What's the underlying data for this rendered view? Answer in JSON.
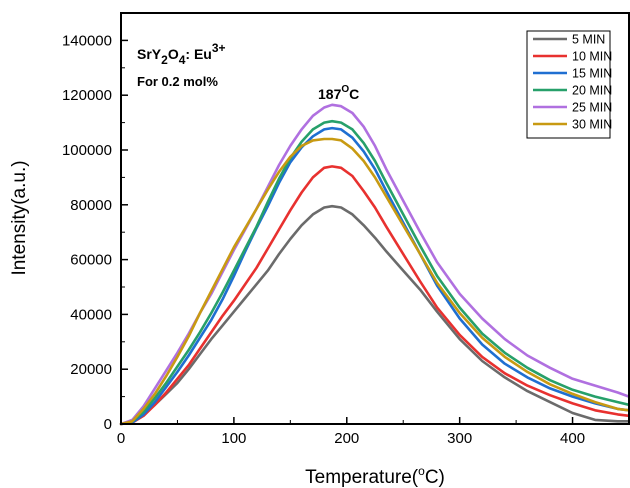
{
  "chart_data": {
    "type": "line",
    "xlabel": "Temperature(",
    "xlabel_sup": "o",
    "xlabel_end": "C)",
    "ylabel": "Intensity(a.u.)",
    "xlim": [
      0,
      450
    ],
    "ylim": [
      0,
      150000
    ],
    "xticks": [
      0,
      100,
      200,
      300,
      400
    ],
    "yticks": [
      0,
      20000,
      40000,
      60000,
      80000,
      100000,
      120000,
      140000
    ],
    "legend_position": "top-right",
    "grid": false,
    "annotations": {
      "compound_base": "SrY",
      "compound_sub1": "2",
      "compound_mid": "O",
      "compound_sub2": "4",
      "compound_end": ": Eu",
      "compound_sup": "3+",
      "concentration": "For 0.2 mol%",
      "peak_value": "187",
      "peak_sup": "O",
      "peak_unit": "C"
    },
    "x": [
      0,
      10,
      20,
      30,
      40,
      50,
      60,
      70,
      80,
      90,
      100,
      110,
      120,
      130,
      140,
      150,
      160,
      170,
      180,
      187,
      195,
      205,
      215,
      225,
      235,
      250,
      265,
      280,
      300,
      320,
      340,
      360,
      380,
      400,
      420,
      440,
      450
    ],
    "series": [
      {
        "name": "5 MIN",
        "color": "#6b6b6b",
        "values": [
          0,
          1000,
          3500,
          7000,
          11000,
          15000,
          20000,
          25500,
          31000,
          36000,
          41000,
          46000,
          51000,
          56000,
          62000,
          67500,
          72500,
          76500,
          79000,
          79500,
          79000,
          76500,
          72500,
          68000,
          63000,
          56000,
          49000,
          41000,
          31000,
          23000,
          17000,
          12000,
          8000,
          4000,
          1500,
          1000,
          1000
        ]
      },
      {
        "name": "10 MIN",
        "color": "#e8312f",
        "values": [
          0,
          500,
          3000,
          7000,
          11500,
          16500,
          21500,
          27500,
          33500,
          39500,
          45000,
          51000,
          57000,
          64000,
          71000,
          78000,
          84500,
          90000,
          93500,
          94000,
          93500,
          90500,
          85000,
          79000,
          72000,
          62000,
          52000,
          42500,
          32500,
          24500,
          18500,
          14000,
          10500,
          7500,
          5000,
          3500,
          3000
        ]
      },
      {
        "name": "15 MIN",
        "color": "#1f6fd1",
        "values": [
          0,
          500,
          3500,
          8000,
          13500,
          19000,
          25000,
          31500,
          38000,
          45500,
          54000,
          63000,
          71500,
          79500,
          88000,
          95500,
          101000,
          105000,
          107500,
          108000,
          107500,
          104500,
          99500,
          93000,
          85000,
          73500,
          62000,
          50500,
          38500,
          29000,
          22000,
          17000,
          13000,
          10000,
          7500,
          5500,
          5000
        ]
      },
      {
        "name": "20 MIN",
        "color": "#27a06a",
        "values": [
          0,
          1000,
          4500,
          9500,
          15000,
          21000,
          27000,
          33500,
          40500,
          48000,
          56000,
          64000,
          72000,
          81000,
          89500,
          97000,
          103000,
          107500,
          110000,
          110500,
          110000,
          107500,
          102500,
          96000,
          88000,
          76500,
          65000,
          54000,
          42500,
          33000,
          26000,
          20500,
          16000,
          12500,
          10000,
          8000,
          7000
        ]
      },
      {
        "name": "25 MIN",
        "color": "#b070e0",
        "values": [
          0,
          1500,
          6500,
          13000,
          19500,
          26000,
          33000,
          40500,
          47500,
          55500,
          63500,
          71000,
          78500,
          86500,
          94500,
          101500,
          107500,
          112500,
          115500,
          116500,
          116000,
          113500,
          108500,
          101500,
          93000,
          81500,
          70000,
          59000,
          47500,
          38500,
          31000,
          25000,
          20500,
          16500,
          14000,
          11500,
          10000
        ]
      },
      {
        "name": "30 MIN",
        "color": "#c89a12",
        "values": [
          0,
          1000,
          5500,
          11000,
          17500,
          24500,
          32000,
          40500,
          48500,
          56500,
          64500,
          71500,
          78500,
          85500,
          92000,
          97500,
          101500,
          103500,
          104000,
          104000,
          103500,
          100500,
          96000,
          90000,
          83000,
          72500,
          62000,
          51500,
          40500,
          31500,
          24500,
          19000,
          14500,
          11000,
          8000,
          5500,
          5000
        ]
      }
    ]
  }
}
